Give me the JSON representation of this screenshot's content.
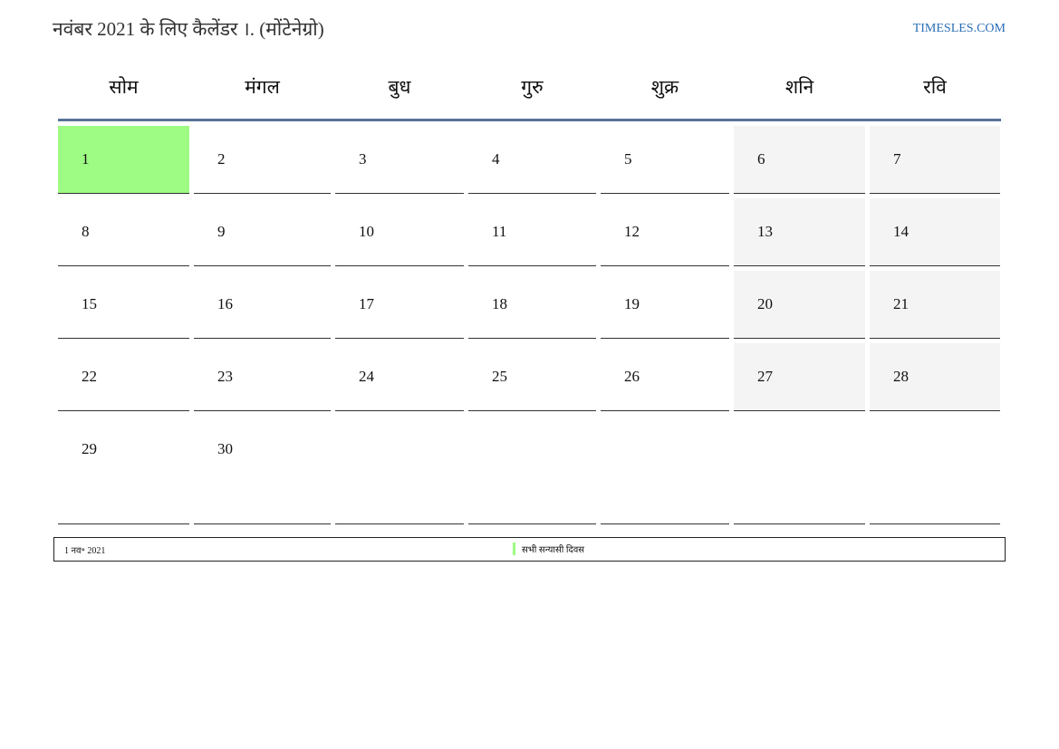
{
  "header": {
    "title": "नवंबर 2021 के लिए कैलेंडर ।. (मोंटेनेग्रो)",
    "site": "TIMESLES.COM"
  },
  "weekdays": [
    "सोम",
    "मंगल",
    "बुध",
    "गुरु",
    "शुक्र",
    "शनि",
    "रवि"
  ],
  "colors": {
    "holiday": "#9efb84",
    "weekend": "#f4f4f4",
    "header_rule": "#5a7399",
    "link": "#2a6db5"
  },
  "weeks": [
    [
      "1",
      "2",
      "3",
      "4",
      "5",
      "6",
      "7"
    ],
    [
      "8",
      "9",
      "10",
      "11",
      "12",
      "13",
      "14"
    ],
    [
      "15",
      "16",
      "17",
      "18",
      "19",
      "20",
      "21"
    ],
    [
      "22",
      "23",
      "24",
      "25",
      "26",
      "27",
      "28"
    ],
    [
      "29",
      "30",
      "",
      "",
      "",
      "",
      ""
    ]
  ],
  "holidays": [
    {
      "date": "1 नव॰ 2021",
      "name": "सभी सन्यासी दिवस"
    }
  ]
}
